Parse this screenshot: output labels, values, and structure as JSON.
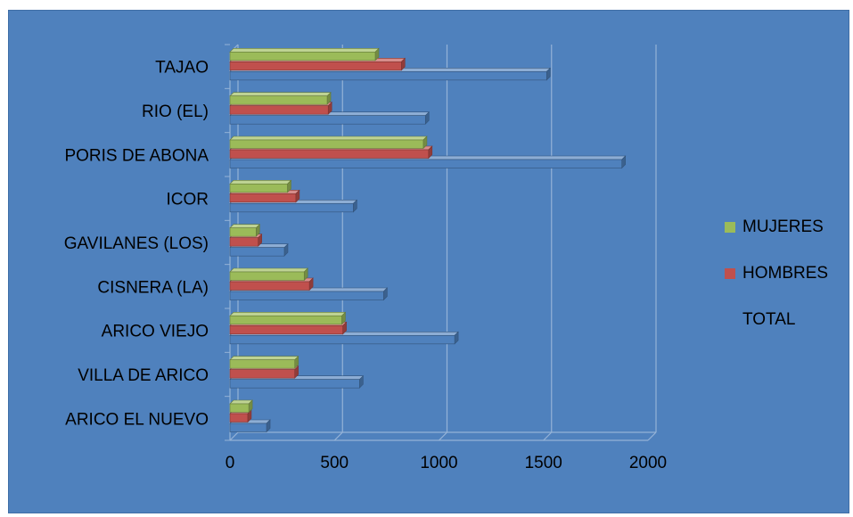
{
  "chart_data": {
    "type": "bar",
    "orientation": "horizontal",
    "style": "3d-clustered",
    "categories": [
      "ARICO EL NUEVO",
      "VILLA DE ARICO",
      "ARICO VIEJO",
      "CISNERA (LA)",
      "GAVILANES (LOS)",
      "ICOR",
      "PORIS DE ABONA",
      "RIO (EL)",
      "TAJAO"
    ],
    "series": [
      {
        "name": "TOTAL",
        "color": "#4f81bd",
        "values": [
          175,
          620,
          1075,
          735,
          260,
          590,
          1875,
          935,
          1515
        ]
      },
      {
        "name": "HOMBRES",
        "color": "#c0504d",
        "values": [
          85,
          310,
          540,
          380,
          135,
          315,
          950,
          470,
          820
        ]
      },
      {
        "name": "MUJERES",
        "color": "#9bbb59",
        "values": [
          90,
          310,
          535,
          355,
          125,
          275,
          925,
          465,
          695
        ]
      }
    ],
    "xlim": [
      0,
      2000
    ],
    "xticks": [
      "0",
      "500",
      "1000",
      "1500",
      "2000"
    ],
    "grid": true,
    "legend": {
      "placement": "right",
      "entries": [
        {
          "label": "MUJERES",
          "color": "#9bbb59"
        },
        {
          "label": "HOMBRES",
          "color": "#c0504d"
        },
        {
          "label": "TOTAL",
          "color": "#4f81bd"
        }
      ]
    },
    "title": "",
    "xlabel": "",
    "ylabel": ""
  }
}
